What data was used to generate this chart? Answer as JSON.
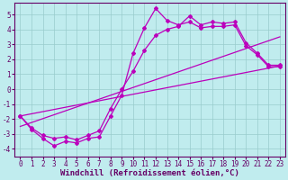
{
  "xlabel": "Windchill (Refroidissement éolien,°C)",
  "xlim": [
    -0.5,
    23.5
  ],
  "ylim": [
    -4.5,
    5.8
  ],
  "xticks": [
    0,
    1,
    2,
    3,
    4,
    5,
    6,
    7,
    8,
    9,
    10,
    11,
    12,
    13,
    14,
    15,
    16,
    17,
    18,
    19,
    20,
    21,
    22,
    23
  ],
  "yticks": [
    -4,
    -3,
    -2,
    -1,
    0,
    1,
    2,
    3,
    4,
    5
  ],
  "bg_color": "#c0ecee",
  "line_color": "#bb00bb",
  "grid_color": "#99cccc",
  "line1_x": [
    0,
    1,
    2,
    3,
    4,
    5,
    6,
    7,
    8,
    9,
    10,
    11,
    12,
    13,
    14,
    15,
    16,
    17,
    18,
    19,
    20,
    21,
    22,
    23
  ],
  "line1_y": [
    -1.8,
    -2.7,
    -3.3,
    -3.8,
    -3.5,
    -3.6,
    -3.3,
    -3.2,
    -1.8,
    -0.4,
    2.4,
    4.1,
    5.4,
    4.6,
    4.3,
    4.5,
    4.1,
    4.2,
    4.2,
    4.3,
    2.9,
    2.3,
    1.5,
    1.5
  ],
  "line2_x": [
    0,
    1,
    2,
    3,
    4,
    5,
    6,
    7,
    8,
    9,
    10,
    11,
    12,
    13,
    14,
    15,
    16,
    17,
    18,
    19,
    20,
    21,
    22,
    23
  ],
  "line2_y": [
    -1.8,
    -2.6,
    -3.1,
    -3.3,
    -3.2,
    -3.4,
    -3.1,
    -2.8,
    -1.3,
    0.0,
    1.2,
    2.6,
    3.6,
    4.0,
    4.2,
    4.9,
    4.3,
    4.5,
    4.4,
    4.5,
    3.1,
    2.4,
    1.6,
    1.6
  ],
  "line3_x": [
    0,
    23
  ],
  "line3_y": [
    -1.8,
    1.55
  ],
  "line4_x": [
    0,
    23
  ],
  "line4_y": [
    -2.5,
    3.5
  ],
  "font_size_xlabel": 6.5,
  "font_size_ticks": 5.5,
  "markersize": 2.0,
  "linewidth": 0.9
}
